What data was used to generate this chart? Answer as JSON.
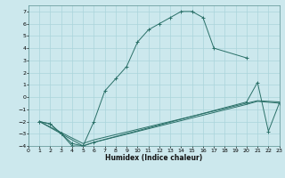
{
  "xlabel": "Humidex (Indice chaleur)",
  "bg_color": "#cce8ed",
  "grid_color": "#aad4db",
  "line_color": "#2a7068",
  "xlim": [
    0,
    23
  ],
  "ylim": [
    -4,
    7.5
  ],
  "xticks": [
    0,
    1,
    2,
    3,
    4,
    5,
    6,
    7,
    8,
    9,
    10,
    11,
    12,
    13,
    14,
    15,
    16,
    17,
    18,
    19,
    20,
    21,
    22,
    23
  ],
  "yticks": [
    -4,
    -3,
    -2,
    -1,
    0,
    1,
    2,
    3,
    4,
    5,
    6,
    7
  ],
  "line1_x": [
    1,
    2,
    3,
    4,
    5,
    6,
    7,
    8,
    9,
    10,
    11,
    12,
    13,
    14,
    15,
    16,
    17,
    20
  ],
  "line1_y": [
    -2,
    -2.2,
    -3,
    -4,
    -4,
    -2,
    0.5,
    1.5,
    2.5,
    4.5,
    5.5,
    6,
    6.5,
    7,
    7,
    6.5,
    4,
    3.2
  ],
  "line2_x": [
    1,
    2,
    3,
    4,
    5,
    6,
    20,
    21,
    22,
    23
  ],
  "line2_y": [
    -2,
    -2.2,
    -3.0,
    -3.8,
    -4,
    -3.7,
    -0.4,
    1.2,
    -2.8,
    -0.5
  ],
  "line3_x": [
    1,
    5,
    6,
    20,
    21,
    23
  ],
  "line3_y": [
    -2,
    -3.8,
    -3.5,
    -0.5,
    -0.3,
    -0.4
  ],
  "line4_x": [
    1,
    5,
    6,
    20,
    21,
    23
  ],
  "line4_y": [
    -2,
    -4.0,
    -3.7,
    -0.6,
    -0.35,
    -0.5
  ]
}
